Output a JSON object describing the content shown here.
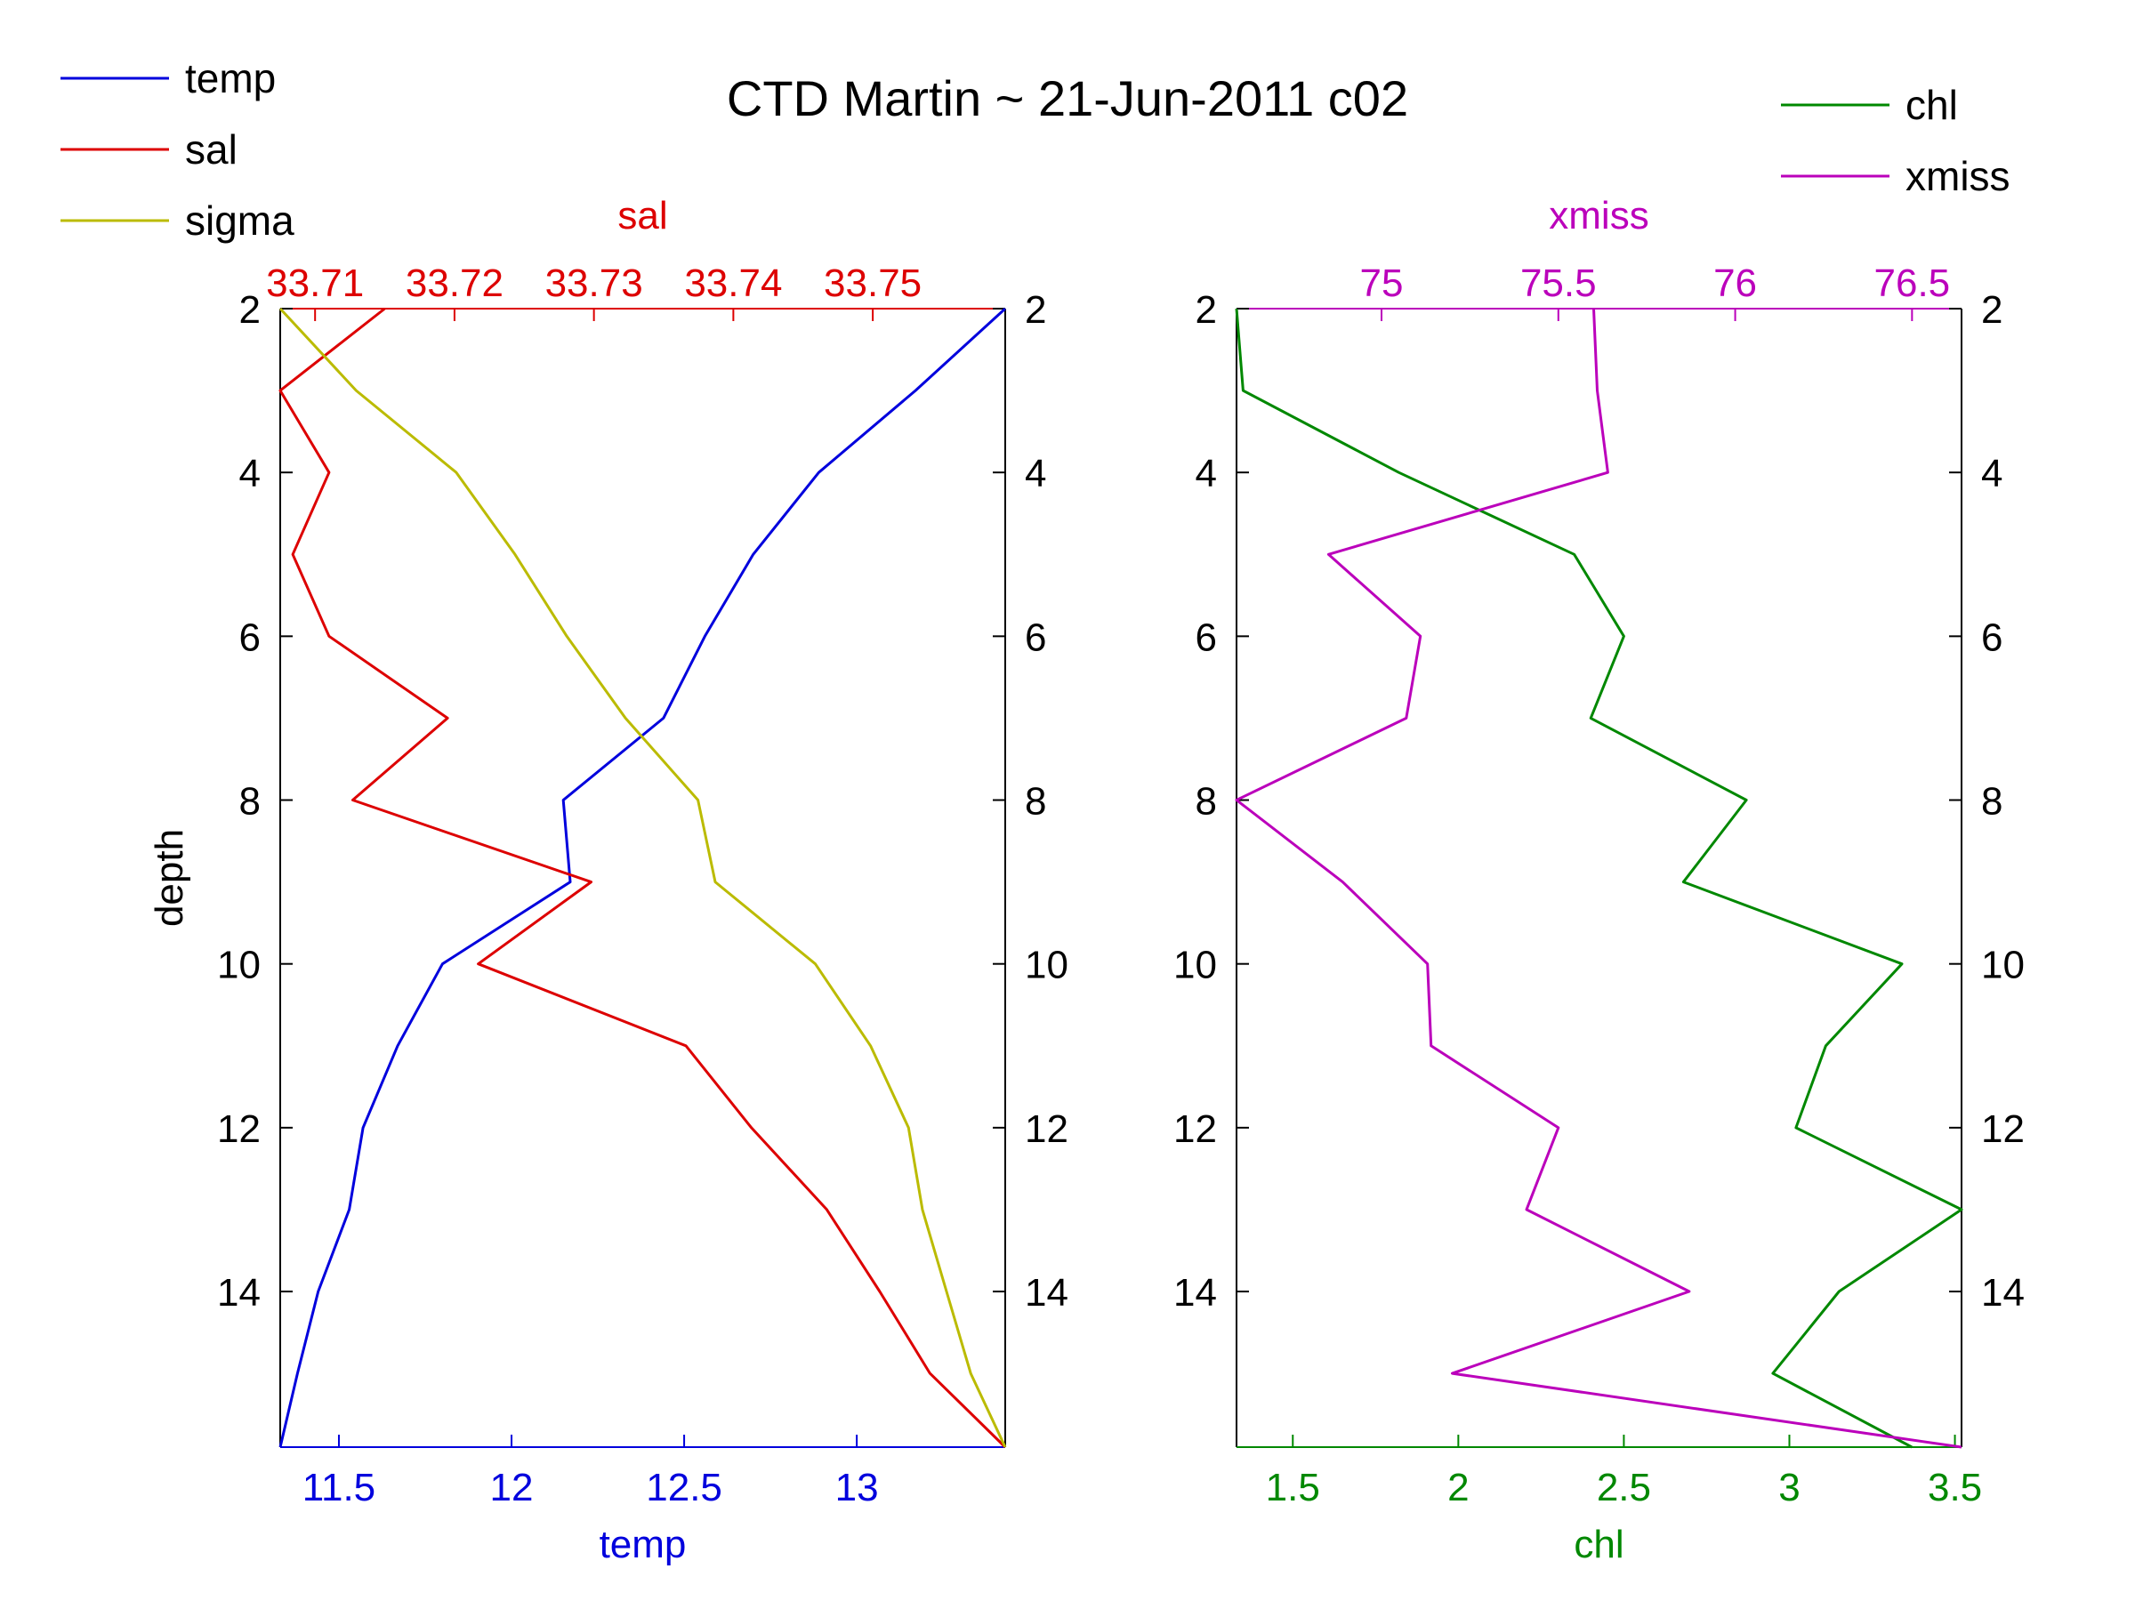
{
  "title": "CTD Martin ~ 21-Jun-2011 c02",
  "colors": {
    "temp": "#0000dd",
    "sal": "#dd0000",
    "sigma": "#bbbb00",
    "chl": "#008800",
    "xmiss": "#bb00bb",
    "axis": "#000000"
  },
  "legend_left": [
    {
      "key": "temp",
      "label": "temp"
    },
    {
      "key": "sal",
      "label": "sal"
    },
    {
      "key": "sigma",
      "label": "sigma"
    }
  ],
  "legend_right": [
    {
      "key": "chl",
      "label": "chl"
    },
    {
      "key": "xmiss",
      "label": "xmiss"
    }
  ],
  "chart_data": [
    {
      "type": "line",
      "title": "",
      "ylabel": "depth",
      "ylim": [
        2,
        15.9
      ],
      "y_reversed": true,
      "yticks": [
        2,
        4,
        6,
        8,
        10,
        12,
        14
      ],
      "depth": [
        2,
        3,
        4,
        5,
        6,
        7,
        8,
        9,
        10,
        11,
        12,
        13,
        14,
        15,
        15.9
      ],
      "bottom_axis": {
        "label": "temp",
        "color_key": "temp",
        "lim": [
          11.33,
          13.43
        ],
        "ticks": [
          11.5,
          12,
          12.5,
          13
        ],
        "tick_labels": [
          "11.5",
          "12",
          "12.5",
          "13"
        ]
      },
      "top_axis": {
        "label": "sal",
        "color_key": "sal",
        "lim": [
          33.7075,
          33.7595
        ],
        "ticks": [
          33.71,
          33.72,
          33.73,
          33.74,
          33.75
        ],
        "tick_labels": [
          "33.71",
          "33.72",
          "33.73",
          "33.74",
          "33.75"
        ]
      },
      "series": [
        {
          "name": "temp",
          "axis": "bottom",
          "color_key": "temp",
          "values": [
            13.43,
            13.17,
            12.89,
            12.7,
            12.56,
            12.44,
            12.15,
            12.17,
            11.8,
            11.67,
            11.57,
            11.53,
            11.44,
            11.38,
            11.33
          ]
        },
        {
          "name": "sal",
          "axis": "top",
          "color_key": "sal",
          "values": [
            33.715,
            33.7075,
            33.711,
            33.7084,
            33.711,
            33.7195,
            33.7127,
            33.7298,
            33.7217,
            33.7366,
            33.7413,
            33.7467,
            33.7505,
            33.7541,
            33.7595
          ]
        },
        {
          "name": "sigma",
          "axis": "bottom",
          "color_key": "sigma",
          "values": [
            11.33,
            11.55,
            11.84,
            12.01,
            12.16,
            12.33,
            12.54,
            12.59,
            12.88,
            13.04,
            13.15,
            13.19,
            13.26,
            13.33,
            13.43
          ]
        }
      ]
    },
    {
      "type": "line",
      "title": "",
      "ylabel": "",
      "ylim": [
        2,
        15.9
      ],
      "y_reversed": true,
      "yticks": [
        2,
        4,
        6,
        8,
        10,
        12,
        14
      ],
      "depth": [
        2,
        3,
        4,
        5,
        6,
        7,
        8,
        9,
        10,
        11,
        12,
        13,
        14,
        15,
        15.9
      ],
      "bottom_axis": {
        "label": "chl",
        "color_key": "chl",
        "lim": [
          1.33,
          3.52
        ],
        "ticks": [
          1.5,
          2,
          2.5,
          3,
          3.5
        ],
        "tick_labels": [
          "1.5",
          "2",
          "2.5",
          "3",
          "3.5"
        ]
      },
      "top_axis": {
        "label": "xmiss",
        "color_key": "xmiss",
        "lim": [
          74.59,
          76.64
        ],
        "ticks": [
          75,
          75.5,
          76,
          76.5
        ],
        "tick_labels": [
          "75",
          "75.5",
          "76",
          "76.5"
        ]
      },
      "series": [
        {
          "name": "chl",
          "axis": "bottom",
          "color_key": "chl",
          "values": [
            1.33,
            1.35,
            1.82,
            2.35,
            2.5,
            2.4,
            2.87,
            2.68,
            3.34,
            3.11,
            3.02,
            3.52,
            3.15,
            2.95,
            3.37
          ]
        },
        {
          "name": "xmiss",
          "axis": "top",
          "color_key": "xmiss",
          "values": [
            75.6,
            75.61,
            75.64,
            74.85,
            75.11,
            75.07,
            74.59,
            74.89,
            75.13,
            75.14,
            75.5,
            75.41,
            75.87,
            75.2,
            76.64
          ]
        }
      ]
    }
  ]
}
